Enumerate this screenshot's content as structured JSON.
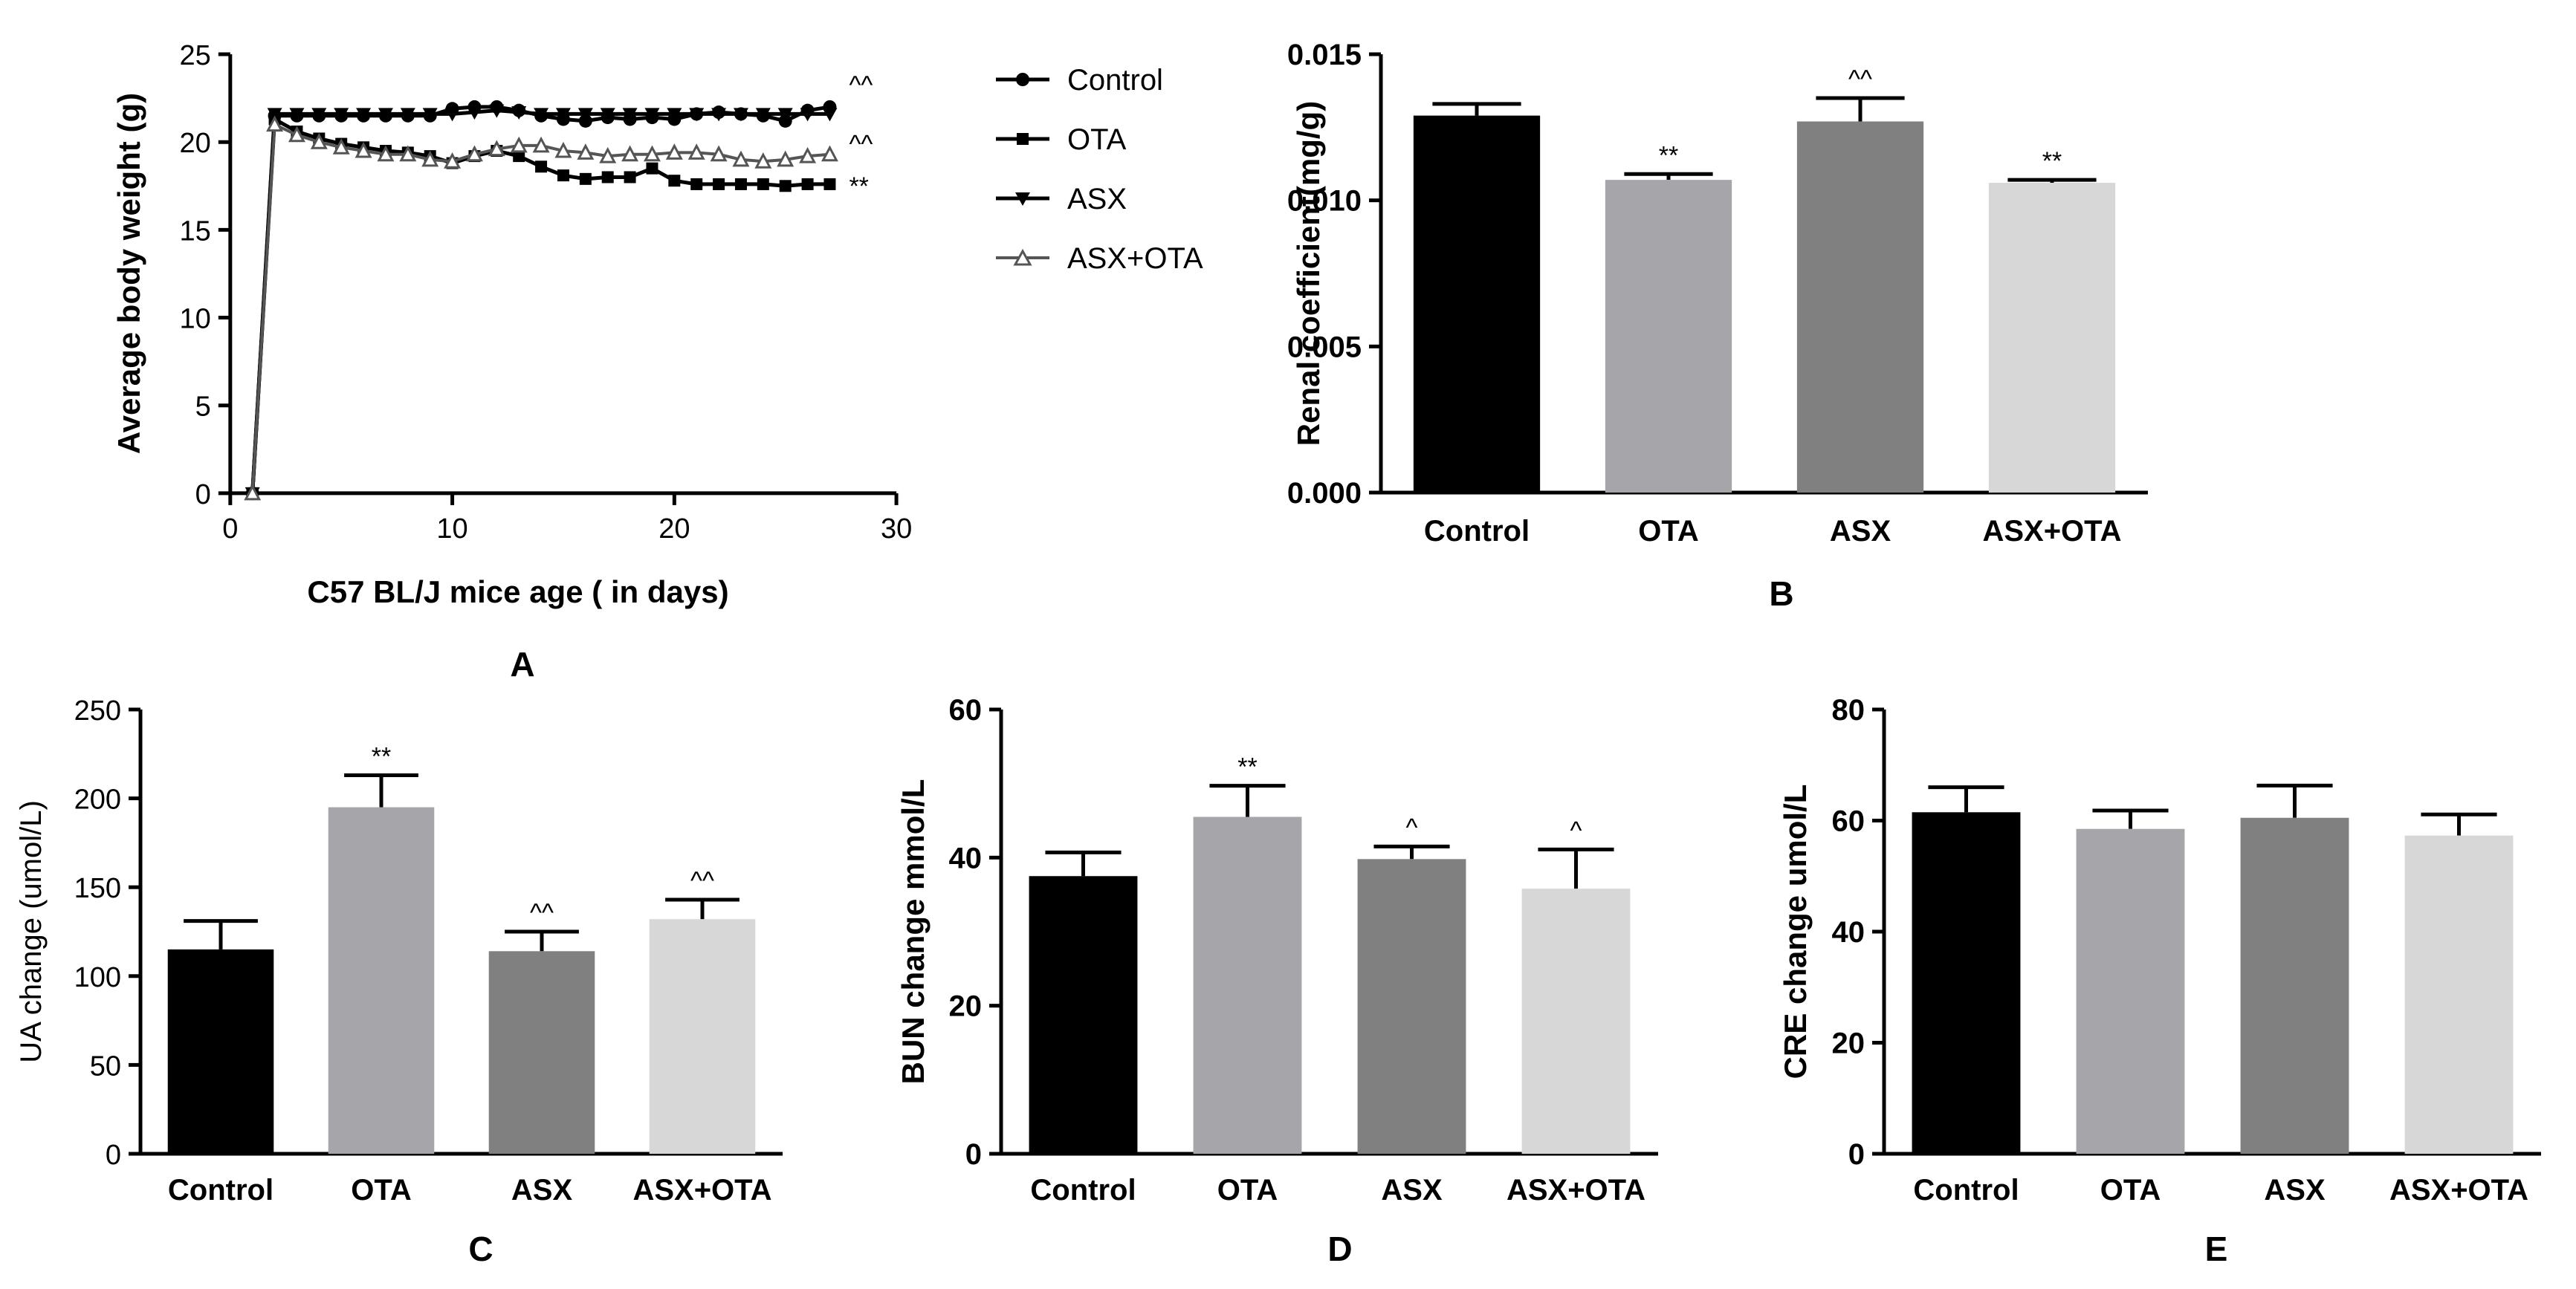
{
  "colors": {
    "Control": "#000000",
    "OTA": "#a5a5aa",
    "ASX": "#808080",
    "ASX+OTA": "#d7d7d7",
    "line": "#000000",
    "asx_ota_line": "#555555"
  },
  "chart_data": [
    {
      "id": "A",
      "type": "line",
      "panel_label": "A",
      "xlabel": "C57 BL/J mice age ( in days)",
      "ylabel": "Average body weight (g)",
      "xlim": [
        0,
        30
      ],
      "ylim": [
        0,
        25
      ],
      "xticks": [
        0,
        10,
        20,
        30
      ],
      "yticks": [
        0,
        5,
        10,
        15,
        20,
        25
      ],
      "x": [
        1,
        2,
        3,
        4,
        5,
        6,
        7,
        8,
        9,
        10,
        11,
        12,
        13,
        14,
        15,
        16,
        17,
        18,
        19,
        20,
        21,
        22,
        23,
        24,
        25,
        26,
        27
      ],
      "series": [
        {
          "name": "Control",
          "marker": "circle",
          "values": [
            0,
            21.5,
            21.5,
            21.5,
            21.5,
            21.5,
            21.5,
            21.5,
            21.5,
            21.9,
            22.0,
            22.0,
            21.8,
            21.5,
            21.3,
            21.2,
            21.4,
            21.3,
            21.4,
            21.3,
            21.6,
            21.7,
            21.6,
            21.5,
            21.2,
            21.8,
            22.0
          ],
          "annotation": "^^"
        },
        {
          "name": "OTA",
          "marker": "square",
          "values": [
            0,
            21.3,
            20.6,
            20.2,
            19.9,
            19.7,
            19.5,
            19.4,
            19.2,
            18.8,
            19.2,
            19.5,
            19.2,
            18.6,
            18.1,
            17.9,
            18.0,
            18.0,
            18.5,
            17.8,
            17.6,
            17.6,
            17.6,
            17.6,
            17.5,
            17.6,
            17.6
          ],
          "annotation": "**"
        },
        {
          "name": "ASX",
          "marker": "triangle-down",
          "values": [
            0,
            21.6,
            21.6,
            21.6,
            21.6,
            21.6,
            21.6,
            21.6,
            21.6,
            21.6,
            21.7,
            21.8,
            21.7,
            21.6,
            21.6,
            21.6,
            21.6,
            21.6,
            21.6,
            21.6,
            21.6,
            21.6,
            21.6,
            21.6,
            21.6,
            21.6,
            21.6
          ],
          "annotation": ""
        },
        {
          "name": "ASX+OTA",
          "marker": "triangle-up-open",
          "values": [
            0,
            21.0,
            20.4,
            20.0,
            19.7,
            19.5,
            19.3,
            19.3,
            19.0,
            18.9,
            19.3,
            19.6,
            19.8,
            19.8,
            19.5,
            19.4,
            19.2,
            19.3,
            19.3,
            19.4,
            19.4,
            19.3,
            19.0,
            18.9,
            19.0,
            19.2,
            19.3
          ],
          "annotation": "^^"
        }
      ]
    },
    {
      "id": "B",
      "type": "bar",
      "panel_label": "B",
      "ylabel": "Renal coefficient(mg/g)",
      "categories": [
        "Control",
        "OTA",
        "ASX",
        "ASX+OTA"
      ],
      "values": [
        0.0129,
        0.0107,
        0.0127,
        0.0106
      ],
      "errors": [
        0.0004,
        0.0002,
        0.0008,
        0.0001
      ],
      "annotations": [
        "",
        "**",
        "^^",
        "**"
      ],
      "ylim": [
        0,
        0.015
      ],
      "yticks": [
        "0.000",
        "0.005",
        "0.010",
        "0.015"
      ],
      "tick_style": "bold"
    },
    {
      "id": "C",
      "type": "bar",
      "panel_label": "C",
      "ylabel": "UA change (umol/L)",
      "categories": [
        "Control",
        "OTA",
        "ASX",
        "ASX+OTA"
      ],
      "values": [
        115,
        195,
        114,
        132
      ],
      "errors": [
        16,
        18,
        11,
        11
      ],
      "annotations": [
        "",
        "**",
        "^^",
        "^^"
      ],
      "ylim": [
        0,
        250
      ],
      "yticks": [
        "0",
        "50",
        "100",
        "150",
        "200",
        "250"
      ],
      "tick_style": "plain"
    },
    {
      "id": "D",
      "type": "bar",
      "panel_label": "D",
      "ylabel": "BUN change mmol/L",
      "categories": [
        "Control",
        "OTA",
        "ASX",
        "ASX+OTA"
      ],
      "values": [
        37.5,
        45.5,
        39.8,
        35.8
      ],
      "errors": [
        3.2,
        4.2,
        1.7,
        5.3
      ],
      "annotations": [
        "",
        "**",
        "^",
        "^"
      ],
      "ylim": [
        0,
        60
      ],
      "yticks": [
        "0",
        "20",
        "40",
        "60"
      ],
      "tick_style": "bold"
    },
    {
      "id": "E",
      "type": "bar",
      "panel_label": "E",
      "ylabel": "CRE change umol/L",
      "categories": [
        "Control",
        "OTA",
        "ASX",
        "ASX+OTA"
      ],
      "values": [
        61.5,
        58.5,
        60.5,
        57.3
      ],
      "errors": [
        4.5,
        3.3,
        5.8,
        3.8
      ],
      "annotations": [
        "",
        "",
        "",
        ""
      ],
      "ylim": [
        0,
        80
      ],
      "yticks": [
        "0",
        "20",
        "40",
        "60",
        "80"
      ],
      "tick_style": "bold"
    }
  ]
}
